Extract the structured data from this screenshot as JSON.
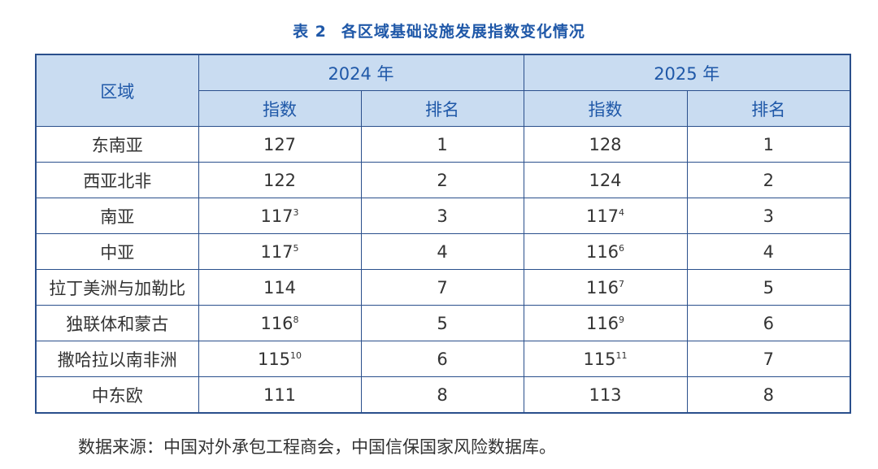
{
  "title": {
    "label": "表 2",
    "text": "各区域基础设施发展指数变化情况"
  },
  "header": {
    "region": "区域",
    "year1": "2024 年",
    "year2": "2025 年",
    "index": "指数",
    "rank": "排名"
  },
  "rows": [
    {
      "region": "东南亚",
      "idx1": "127",
      "sup1": "",
      "rank1": "1",
      "idx2": "128",
      "sup2": "",
      "rank2": "1"
    },
    {
      "region": "西亚北非",
      "idx1": "122",
      "sup1": "",
      "rank1": "2",
      "idx2": "124",
      "sup2": "",
      "rank2": "2"
    },
    {
      "region": "南亚",
      "idx1": "117",
      "sup1": "3",
      "rank1": "3",
      "idx2": "117",
      "sup2": "4",
      "rank2": "3"
    },
    {
      "region": "中亚",
      "idx1": "117",
      "sup1": "5",
      "rank1": "4",
      "idx2": "116",
      "sup2": "6",
      "rank2": "4"
    },
    {
      "region": "拉丁美洲与加勒比",
      "idx1": "114",
      "sup1": "",
      "rank1": "7",
      "idx2": "116",
      "sup2": "7",
      "rank2": "5"
    },
    {
      "region": "独联体和蒙古",
      "idx1": "116",
      "sup1": "8",
      "rank1": "5",
      "idx2": "116",
      "sup2": "9",
      "rank2": "6"
    },
    {
      "region": "撒哈拉以南非洲",
      "idx1": "115",
      "sup1": "10",
      "rank1": "6",
      "idx2": "115",
      "sup2": "11",
      "rank2": "7"
    },
    {
      "region": "中东欧",
      "idx1": "111",
      "sup1": "",
      "rank1": "8",
      "idx2": "113",
      "sup2": "",
      "rank2": "8"
    }
  ],
  "source": "数据来源：中国对外承包工程商会，中国信保国家风险数据库。",
  "colors": {
    "accent": "#1f58a8",
    "header_bg": "#c9dcf1",
    "border": "#2a4f8c"
  }
}
